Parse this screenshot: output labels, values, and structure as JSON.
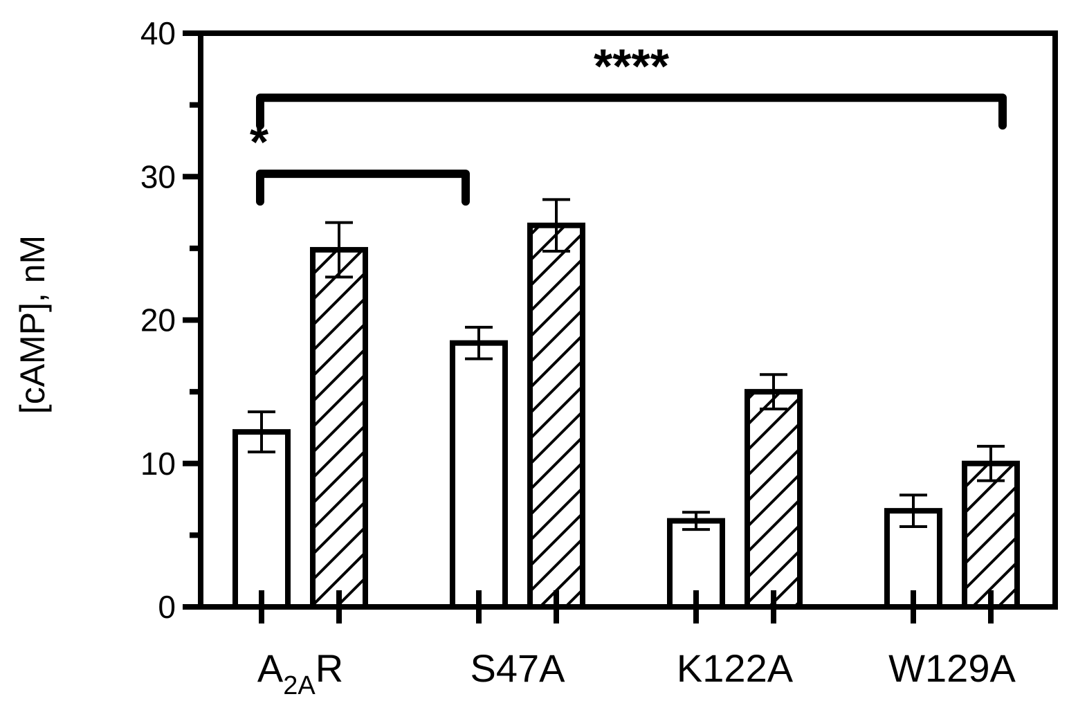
{
  "chart_data": {
    "type": "bar",
    "title": "",
    "ylabel": "[cAMP], nM",
    "xlabel": "",
    "ylim": [
      0,
      40
    ],
    "yticks": [
      0,
      10,
      20,
      30,
      40
    ],
    "y_minor_ticks": [
      5,
      15,
      25,
      35
    ],
    "categories": [
      {
        "main": "A",
        "sub": "2A",
        "tail": "R"
      },
      {
        "main": "S47A",
        "sub": "",
        "tail": ""
      },
      {
        "main": "K122A",
        "sub": "",
        "tail": ""
      },
      {
        "main": "W129A",
        "sub": "",
        "tail": ""
      }
    ],
    "series": [
      {
        "fill": "open",
        "values": [
          12.2,
          18.4,
          6.0,
          6.7
        ],
        "errors": [
          1.4,
          1.1,
          0.6,
          1.1
        ]
      },
      {
        "fill": "hatched",
        "values": [
          24.9,
          26.6,
          15.0,
          10.0
        ],
        "errors": [
          1.9,
          1.8,
          1.2,
          1.2
        ]
      }
    ],
    "significance": [
      {
        "label": "*",
        "from_category": 0,
        "to_category": 1,
        "y": 30.2
      },
      {
        "label": "****",
        "from_category": 0,
        "to_category": 3,
        "y": 35.5
      }
    ],
    "grid": false,
    "legend": "none",
    "colors": {
      "stroke": "#000000",
      "fill": "#ffffff"
    }
  }
}
